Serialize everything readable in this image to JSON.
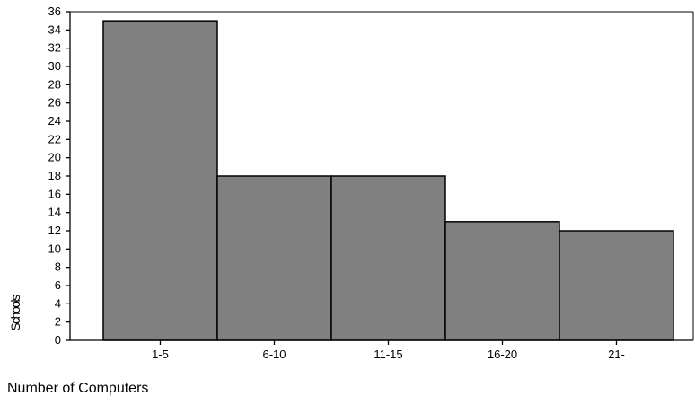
{
  "chart_data": {
    "type": "bar",
    "title": "",
    "xlabel": "Number of Computers",
    "ylabel": "Schools",
    "categories": [
      "1-5",
      "6-10",
      "11-15",
      "16-20",
      "21-"
    ],
    "values": [
      35,
      18,
      18,
      13,
      12
    ],
    "ylim": [
      0,
      36
    ],
    "yticks": [
      0,
      2,
      4,
      6,
      8,
      10,
      12,
      14,
      16,
      18,
      20,
      22,
      24,
      26,
      28,
      30,
      32,
      34,
      36
    ],
    "grid": false,
    "legend": "none",
    "bar_color": "#808080",
    "edge_color": "#000000"
  }
}
